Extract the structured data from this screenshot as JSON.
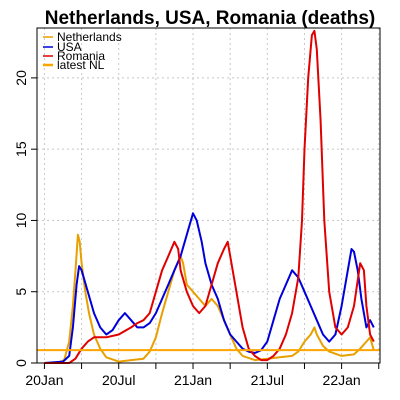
{
  "chart_data": {
    "type": "line",
    "title": "Netherlands, USA, Romania (deaths)",
    "xlabel": "",
    "ylabel": "",
    "x_tick_labels": [
      "20Jan",
      "20Jul",
      "21Jan",
      "21Jul",
      "22Jan"
    ],
    "y_tick_labels": [
      "0",
      "5",
      "10",
      "15",
      "20"
    ],
    "y_ticks": [
      0,
      5,
      10,
      15,
      20
    ],
    "ylim": [
      0,
      23.5
    ],
    "x_range_months_since_jan2020": [
      -0.6,
      27.1
    ],
    "grid": true,
    "legend_position": "top-left",
    "series": [
      {
        "name": "Netherlands",
        "color": "#e8a000",
        "points": [
          [
            0.0,
            0.0
          ],
          [
            1.0,
            0.0
          ],
          [
            1.6,
            0.2
          ],
          [
            2.0,
            1.5
          ],
          [
            2.3,
            4.0
          ],
          [
            2.55,
            7.0
          ],
          [
            2.7,
            9.0
          ],
          [
            2.85,
            8.5
          ],
          [
            3.0,
            7.0
          ],
          [
            3.3,
            5.0
          ],
          [
            3.6,
            3.5
          ],
          [
            4.0,
            2.0
          ],
          [
            4.5,
            1.0
          ],
          [
            5.0,
            0.4
          ],
          [
            6.0,
            0.1
          ],
          [
            7.0,
            0.2
          ],
          [
            8.0,
            0.3
          ],
          [
            8.5,
            0.8
          ],
          [
            9.0,
            1.8
          ],
          [
            9.5,
            3.5
          ],
          [
            10.0,
            5.0
          ],
          [
            10.5,
            6.5
          ],
          [
            11.0,
            7.5
          ],
          [
            11.2,
            7.0
          ],
          [
            11.5,
            5.5
          ],
          [
            12.0,
            5.0
          ],
          [
            12.5,
            4.5
          ],
          [
            13.0,
            4.0
          ],
          [
            13.5,
            4.5
          ],
          [
            14.0,
            4.0
          ],
          [
            14.5,
            3.0
          ],
          [
            15.0,
            2.0
          ],
          [
            15.5,
            1.0
          ],
          [
            16.0,
            0.5
          ],
          [
            17.0,
            0.2
          ],
          [
            18.0,
            0.3
          ],
          [
            19.0,
            0.4
          ],
          [
            20.0,
            0.5
          ],
          [
            20.5,
            0.8
          ],
          [
            21.0,
            1.5
          ],
          [
            21.5,
            2.0
          ],
          [
            21.8,
            2.5
          ],
          [
            22.0,
            2.0
          ],
          [
            22.5,
            1.2
          ],
          [
            23.0,
            0.8
          ],
          [
            24.0,
            0.5
          ],
          [
            25.0,
            0.6
          ],
          [
            25.5,
            1.0
          ],
          [
            26.0,
            1.5
          ],
          [
            26.3,
            1.8
          ],
          [
            26.6,
            0.9
          ]
        ]
      },
      {
        "name": "USA",
        "color": "#0000dd",
        "points": [
          [
            0.0,
            0.0
          ],
          [
            1.5,
            0.1
          ],
          [
            2.0,
            0.5
          ],
          [
            2.3,
            2.5
          ],
          [
            2.6,
            5.5
          ],
          [
            2.8,
            6.8
          ],
          [
            3.0,
            6.5
          ],
          [
            3.5,
            5.0
          ],
          [
            4.0,
            3.5
          ],
          [
            4.5,
            2.5
          ],
          [
            5.0,
            2.0
          ],
          [
            5.5,
            2.3
          ],
          [
            6.0,
            3.0
          ],
          [
            6.5,
            3.5
          ],
          [
            7.0,
            3.0
          ],
          [
            7.5,
            2.5
          ],
          [
            8.0,
            2.5
          ],
          [
            8.5,
            2.8
          ],
          [
            9.0,
            3.5
          ],
          [
            9.5,
            4.5
          ],
          [
            10.0,
            5.5
          ],
          [
            10.5,
            6.5
          ],
          [
            11.0,
            7.5
          ],
          [
            11.5,
            9.0
          ],
          [
            12.0,
            10.5
          ],
          [
            12.3,
            10.0
          ],
          [
            12.7,
            8.5
          ],
          [
            13.0,
            7.0
          ],
          [
            13.5,
            5.5
          ],
          [
            14.0,
            4.5
          ],
          [
            14.5,
            3.0
          ],
          [
            15.0,
            2.0
          ],
          [
            15.5,
            1.5
          ],
          [
            16.0,
            1.0
          ],
          [
            16.5,
            0.8
          ],
          [
            17.0,
            0.7
          ],
          [
            17.5,
            0.9
          ],
          [
            18.0,
            1.5
          ],
          [
            18.5,
            3.0
          ],
          [
            19.0,
            4.5
          ],
          [
            19.5,
            5.5
          ],
          [
            20.0,
            6.5
          ],
          [
            20.5,
            6.0
          ],
          [
            21.0,
            5.0
          ],
          [
            21.5,
            4.0
          ],
          [
            22.0,
            3.0
          ],
          [
            22.5,
            2.0
          ],
          [
            23.0,
            1.5
          ],
          [
            23.5,
            2.0
          ],
          [
            24.0,
            4.0
          ],
          [
            24.5,
            6.5
          ],
          [
            24.8,
            8.0
          ],
          [
            25.0,
            7.8
          ],
          [
            25.3,
            6.5
          ],
          [
            25.6,
            4.5
          ],
          [
            26.0,
            2.5
          ],
          [
            26.3,
            3.0
          ],
          [
            26.6,
            2.5
          ]
        ]
      },
      {
        "name": "Romania",
        "color": "#e00000",
        "points": [
          [
            0.0,
            0.0
          ],
          [
            2.0,
            0.0
          ],
          [
            2.5,
            0.3
          ],
          [
            3.0,
            1.0
          ],
          [
            3.5,
            1.5
          ],
          [
            4.0,
            1.8
          ],
          [
            5.0,
            1.8
          ],
          [
            6.0,
            2.0
          ],
          [
            7.0,
            2.5
          ],
          [
            7.5,
            2.8
          ],
          [
            8.0,
            3.0
          ],
          [
            8.5,
            3.5
          ],
          [
            9.0,
            5.0
          ],
          [
            9.5,
            6.5
          ],
          [
            10.0,
            7.5
          ],
          [
            10.5,
            8.5
          ],
          [
            10.8,
            8.0
          ],
          [
            11.0,
            6.5
          ],
          [
            11.5,
            5.0
          ],
          [
            12.0,
            4.0
          ],
          [
            12.5,
            3.5
          ],
          [
            13.0,
            4.0
          ],
          [
            13.5,
            5.5
          ],
          [
            14.0,
            7.0
          ],
          [
            14.5,
            8.0
          ],
          [
            14.8,
            8.5
          ],
          [
            15.0,
            7.5
          ],
          [
            15.5,
            5.0
          ],
          [
            16.0,
            2.5
          ],
          [
            16.5,
            1.0
          ],
          [
            17.0,
            0.5
          ],
          [
            17.5,
            0.2
          ],
          [
            18.0,
            0.2
          ],
          [
            18.5,
            0.5
          ],
          [
            19.0,
            1.0
          ],
          [
            19.5,
            2.0
          ],
          [
            20.0,
            3.5
          ],
          [
            20.5,
            6.0
          ],
          [
            20.8,
            10.0
          ],
          [
            21.0,
            15.0
          ],
          [
            21.3,
            20.0
          ],
          [
            21.6,
            23.0
          ],
          [
            21.8,
            23.3
          ],
          [
            22.0,
            22.0
          ],
          [
            22.3,
            17.0
          ],
          [
            22.6,
            10.0
          ],
          [
            23.0,
            5.0
          ],
          [
            23.5,
            2.5
          ],
          [
            24.0,
            2.0
          ],
          [
            24.5,
            2.5
          ],
          [
            25.0,
            4.0
          ],
          [
            25.5,
            7.0
          ],
          [
            25.8,
            6.5
          ],
          [
            26.0,
            4.0
          ],
          [
            26.3,
            2.0
          ],
          [
            26.6,
            1.5
          ]
        ]
      },
      {
        "name": "latest NL",
        "color": "#ffa500",
        "constant": 0.9
      }
    ]
  }
}
